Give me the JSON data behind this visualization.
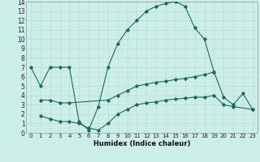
{
  "title": "",
  "xlabel": "Humidex (Indice chaleur)",
  "bg_color": "#cceee8",
  "grid_color": "#b8ddd8",
  "line_color": "#1a6b5a",
  "xlim": [
    -0.5,
    23.5
  ],
  "ylim": [
    0,
    14
  ],
  "xticks": [
    0,
    1,
    2,
    3,
    4,
    5,
    6,
    7,
    8,
    9,
    10,
    11,
    12,
    13,
    14,
    15,
    16,
    17,
    18,
    19,
    20,
    21,
    22,
    23
  ],
  "yticks": [
    0,
    1,
    2,
    3,
    4,
    5,
    6,
    7,
    8,
    9,
    10,
    11,
    12,
    13,
    14
  ],
  "line1_x": [
    0,
    1,
    2,
    3,
    4,
    5,
    6,
    7,
    8,
    9,
    10,
    11,
    12,
    13,
    14,
    15,
    16,
    17,
    18,
    19
  ],
  "line1_y": [
    7,
    5,
    7,
    7,
    7,
    1.2,
    0.3,
    2.8,
    7,
    9.5,
    11,
    12,
    13,
    13.5,
    13.8,
    14.0,
    13.5,
    11.2,
    10,
    6.5
  ],
  "line2_x": [
    1,
    2,
    3,
    4,
    8,
    9,
    10,
    11,
    12,
    13,
    14,
    15,
    16,
    17,
    18,
    19,
    20,
    21,
    22,
    23
  ],
  "line2_y": [
    3.5,
    3.5,
    3.2,
    3.2,
    3.5,
    4.0,
    4.5,
    5.0,
    5.2,
    5.4,
    5.5,
    5.7,
    5.8,
    6.0,
    6.2,
    6.5,
    3.8,
    3.0,
    4.2,
    2.5
  ],
  "line3_x": [
    1,
    2,
    3,
    4,
    5,
    6,
    7,
    8,
    9,
    10,
    11,
    12,
    13,
    14,
    15,
    16,
    17,
    18,
    19,
    20,
    21,
    23
  ],
  "line3_y": [
    1.8,
    1.5,
    1.2,
    1.2,
    1.0,
    0.5,
    0.3,
    1.0,
    2.0,
    2.5,
    3.0,
    3.2,
    3.3,
    3.5,
    3.6,
    3.7,
    3.8,
    3.8,
    4.0,
    3.0,
    2.8,
    2.5
  ]
}
